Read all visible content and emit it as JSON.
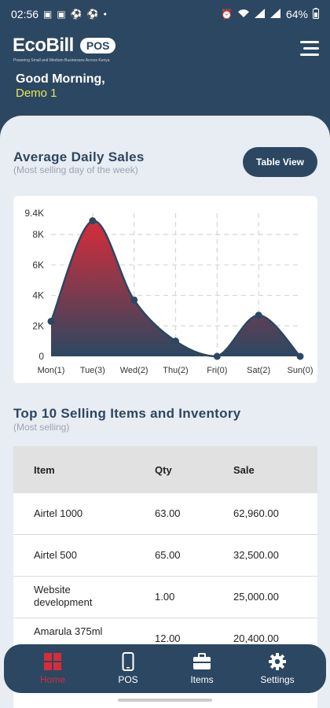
{
  "status_bar": {
    "time": "02:56",
    "battery": "64%"
  },
  "header": {
    "logo_main": "EcoBill",
    "logo_pos": "POS",
    "logo_tagline": "Powering Small and Medium Businesses Across Kenya",
    "greeting": "Good Morning,",
    "username": "Demo 1"
  },
  "sales": {
    "title": "Average Daily Sales",
    "subtitle": "(Most selling day of the week)",
    "table_view_label": "Table View"
  },
  "chart_data": {
    "type": "area",
    "categories": [
      "Mon(1)",
      "Tue(3)",
      "Wed(2)",
      "Thu(2)",
      "Fri(0)",
      "Sat(2)",
      "Sun(0)"
    ],
    "values": [
      2300,
      8900,
      3700,
      1000,
      0,
      2700,
      0
    ],
    "y_ticks": [
      "0",
      "2K",
      "4K",
      "6K",
      "8K",
      "9.4K"
    ],
    "ylim": [
      0,
      9400
    ],
    "grid": true,
    "colors": {
      "top": "#d72c3a",
      "bottom": "#2c4761",
      "line": "#2c4761"
    }
  },
  "items": {
    "title": "Top 10 Selling Items and Inventory",
    "subtitle": "(Most selling)",
    "columns": [
      "Item",
      "Qty",
      "Sale"
    ],
    "rows": [
      [
        "Airtel 1000",
        "63.00",
        "62,960.00"
      ],
      [
        "Airtel 500",
        "65.00",
        "32,500.00"
      ],
      [
        "Website development",
        "1.00",
        "25,000.00"
      ],
      [
        "Amarula 375ml",
        "12.00",
        "20,400.00"
      ]
    ]
  },
  "nav": [
    {
      "label": "Home",
      "icon": "dashboard-icon",
      "active": true
    },
    {
      "label": "POS",
      "icon": "phone-icon",
      "active": false
    },
    {
      "label": "Items",
      "icon": "briefcase-icon",
      "active": false
    },
    {
      "label": "Settings",
      "icon": "gear-icon",
      "active": false
    }
  ]
}
